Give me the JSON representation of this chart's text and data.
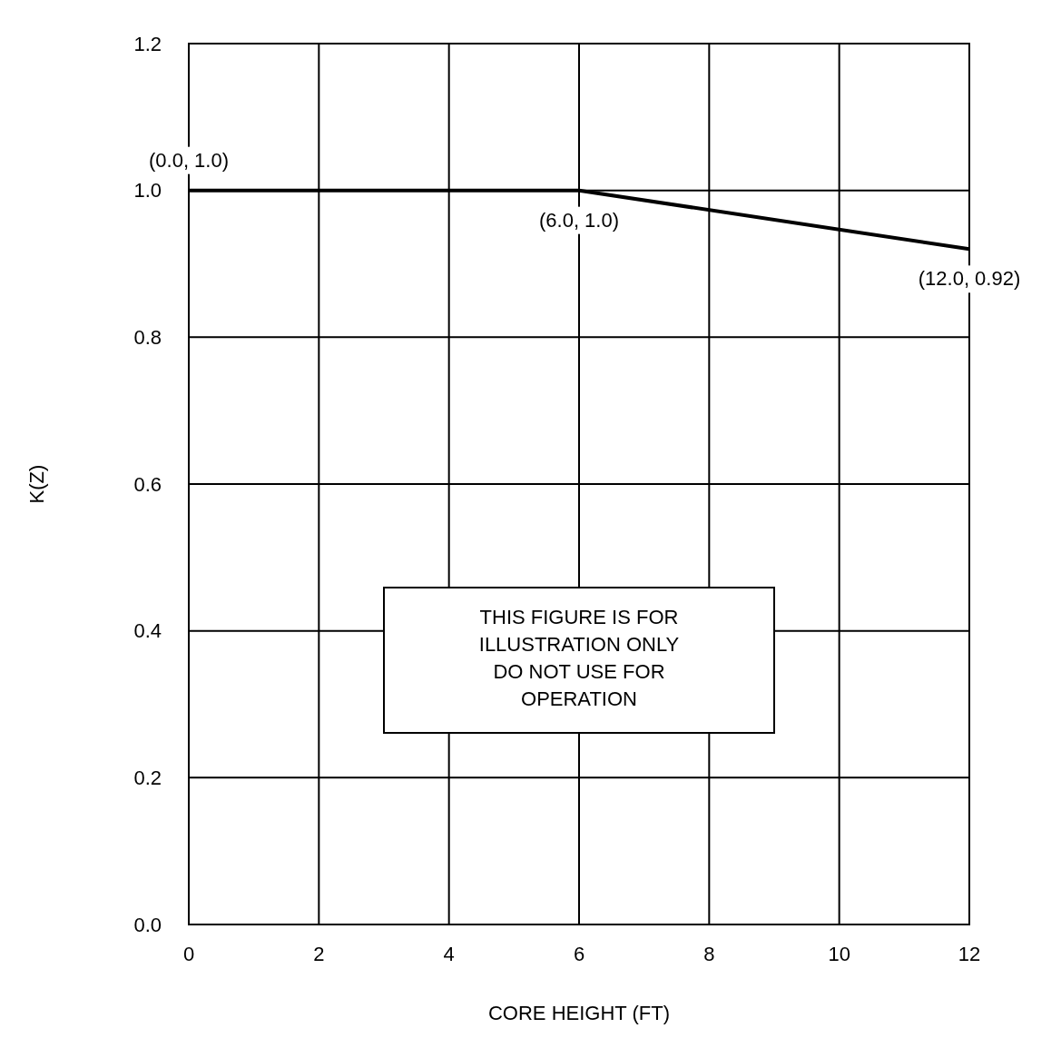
{
  "chart_data": {
    "type": "line",
    "xlabel": "CORE HEIGHT (FT)",
    "ylabel": "K(Z)",
    "x": [
      0,
      6,
      12
    ],
    "series": [
      {
        "color": "#000000",
        "values": [
          1.0,
          1.0,
          0.92
        ]
      }
    ],
    "xlim": [
      0,
      12
    ],
    "xticks": [
      0,
      2,
      4,
      6,
      8,
      10,
      12
    ],
    "ylim": [
      0,
      1.2
    ],
    "yticks": [
      {
        "value": 0,
        "label": "0.0"
      },
      0.2,
      0.4,
      0.6,
      0.8,
      {
        "value": 1,
        "label": "1.0"
      },
      1.2
    ],
    "grid": true,
    "marker": "none",
    "line_style": "solid",
    "annotations": [
      {
        "text": "(0.0, 1.0)",
        "x": 0,
        "y": 1.0
      },
      {
        "text": "(6.0, 1.0)",
        "x": 6,
        "y": 1.0
      },
      {
        "text": "(12.0, 0.92)",
        "x": 12,
        "y": 0.92
      },
      "THIS FIGURE IS FOR\nILLUSTRATION ONLY\nDO NOT USE FOR\nOPERATION"
    ]
  }
}
